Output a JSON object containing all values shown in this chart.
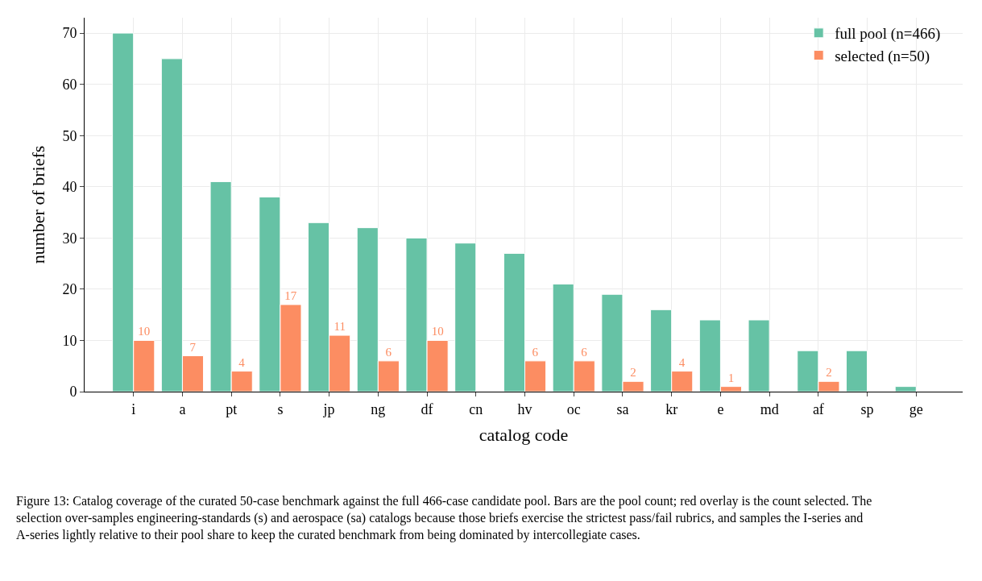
{
  "chart_data": {
    "type": "bar",
    "xlabel": "catalog code",
    "ylabel": "number of briefs",
    "categories": [
      "i",
      "a",
      "pt",
      "s",
      "jp",
      "ng",
      "df",
      "cn",
      "hv",
      "oc",
      "sa",
      "kr",
      "e",
      "md",
      "af",
      "sp",
      "ge"
    ],
    "series": [
      {
        "name": "full pool (n=466)",
        "color": "#66c2a5",
        "values": [
          70,
          65,
          41,
          38,
          33,
          32,
          30,
          29,
          27,
          21,
          19,
          16,
          14,
          14,
          8,
          8,
          1
        ]
      },
      {
        "name": "selected (n=50)",
        "color": "#fc8d62",
        "values": [
          10,
          7,
          4,
          17,
          11,
          6,
          10,
          null,
          6,
          6,
          2,
          4,
          1,
          null,
          2,
          null,
          null
        ],
        "value_labels": [
          "10",
          "7",
          "4",
          "17",
          "11",
          "6",
          "10",
          null,
          "6",
          "6",
          "2",
          "4",
          "1",
          null,
          "2",
          null,
          null
        ]
      }
    ],
    "ylim": [
      0,
      73
    ],
    "yticks": [
      0,
      10,
      20,
      30,
      40,
      50,
      60,
      70
    ],
    "grid": true,
    "legend": "top right",
    "annotations": [
      "Figure 13: Catalog coverage of the curated 50-case benchmark against the full 466-case candidate pool. Bars are the pool count; red overlay is the count selected. The selection over-samples engineering-standards (s) and aerospace (sa) catalogs because those briefs exercise the strictest pass/fail rubrics, and samples the I-series and A-series lightly relative to their pool share to keep the curated benchmark from being dominated by intercollegiate cases."
    ]
  }
}
